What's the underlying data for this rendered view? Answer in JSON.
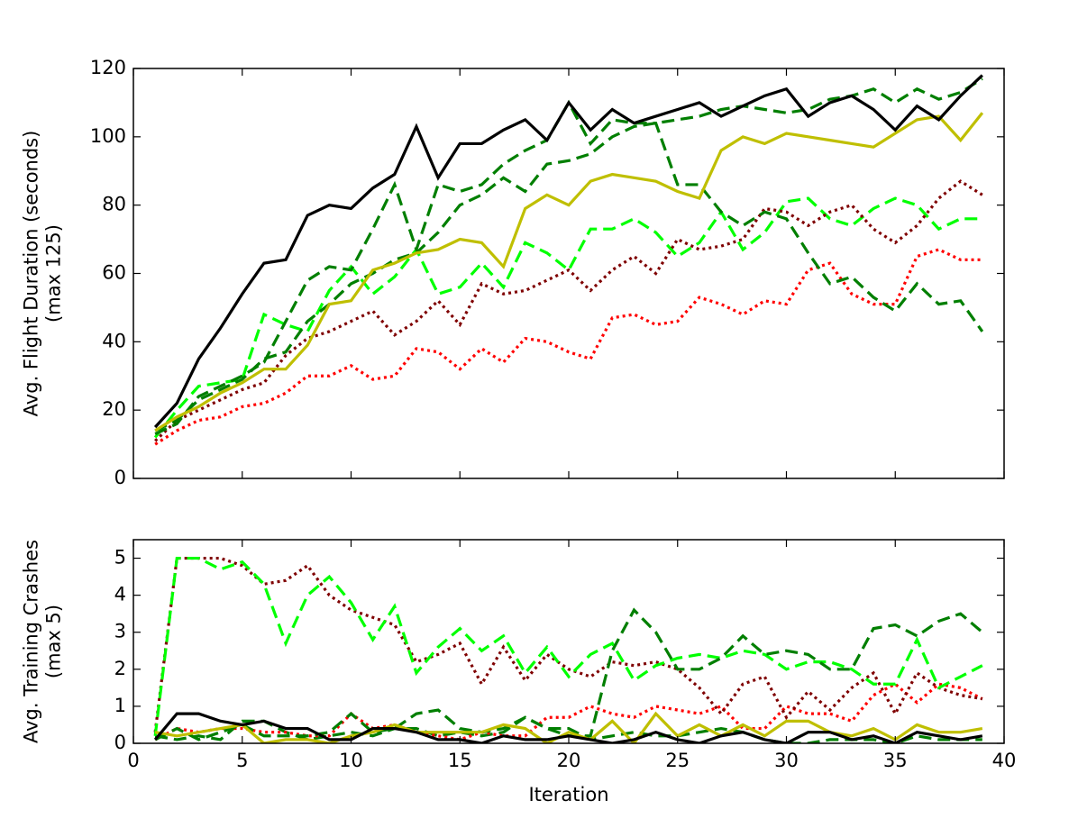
{
  "chart_data": [
    {
      "type": "line",
      "ylabel": [
        "Avg. Flight Duration (seconds)",
        "(max 125)"
      ],
      "x": [
        1,
        2,
        3,
        4,
        5,
        6,
        7,
        8,
        9,
        10,
        11,
        12,
        13,
        14,
        15,
        16,
        17,
        18,
        19,
        20,
        21,
        22,
        23,
        24,
        25,
        26,
        27,
        28,
        29,
        30,
        31,
        32,
        33,
        34,
        35,
        36,
        37,
        38,
        39
      ],
      "xlim": [
        0,
        40
      ],
      "xticks": [
        0,
        5,
        10,
        15,
        20,
        25,
        30,
        35,
        40
      ],
      "xticklabels": false,
      "ylim": [
        0,
        120
      ],
      "yticks": [
        0,
        20,
        40,
        60,
        80,
        100,
        120
      ],
      "series": [
        {
          "color": "#00ff00",
          "style": "dashed",
          "values": [
            12,
            20,
            27,
            28,
            29,
            48,
            45,
            43,
            55,
            62,
            54,
            59,
            67,
            54,
            56,
            63,
            56,
            69,
            66,
            61,
            73,
            73,
            76,
            72,
            65,
            69,
            78,
            67,
            72,
            81,
            82,
            76,
            74,
            79,
            82,
            80,
            73,
            76,
            76
          ]
        },
        {
          "color": "#7f0000",
          "style": "dotted",
          "values": [
            11,
            17,
            20,
            23,
            26,
            28,
            36,
            41,
            43,
            46,
            49,
            42,
            46,
            52,
            45,
            57,
            54,
            55,
            58,
            61,
            55,
            61,
            65,
            60,
            70,
            67,
            68,
            70,
            79,
            78,
            74,
            78,
            80,
            73,
            69,
            74,
            82,
            87,
            83
          ]
        },
        {
          "color": "#ff0000",
          "style": "dotted",
          "values": [
            10,
            14,
            17,
            18,
            21,
            22,
            25,
            30,
            30,
            33,
            29,
            30,
            38,
            37,
            32,
            38,
            34,
            41,
            40,
            37,
            35,
            47,
            48,
            45,
            46,
            53,
            51,
            48,
            52,
            51,
            61,
            63,
            54,
            51,
            51,
            65,
            67,
            64,
            64
          ]
        },
        {
          "color": "#007f00",
          "style": "dashed",
          "values": [
            13,
            16,
            24,
            27,
            30,
            34,
            46,
            58,
            62,
            61,
            73,
            86,
            67,
            86,
            84,
            86,
            92,
            96,
            99,
            110,
            98,
            105,
            104,
            104,
            86,
            86,
            78,
            74,
            78,
            76,
            66,
            57,
            59,
            53,
            49,
            57,
            51,
            52,
            43
          ]
        },
        {
          "color": "#007f00",
          "style": "dashed",
          "values": [
            14,
            17,
            23,
            26,
            29,
            35,
            37,
            46,
            51,
            57,
            60,
            64,
            66,
            72,
            80,
            83,
            88,
            84,
            92,
            93,
            95,
            100,
            103,
            104,
            105,
            106,
            108,
            109,
            108,
            107,
            108,
            111,
            112,
            114,
            110,
            114,
            111,
            113,
            117
          ]
        },
        {
          "color": "#bfbf00",
          "style": "solid",
          "values": [
            14,
            18,
            21,
            25,
            28,
            32,
            32,
            39,
            51,
            52,
            61,
            63,
            66,
            67,
            70,
            69,
            62,
            79,
            83,
            80,
            87,
            89,
            88,
            87,
            84,
            82,
            96,
            100,
            98,
            101,
            100,
            99,
            98,
            97,
            101,
            105,
            106,
            99,
            107
          ]
        },
        {
          "color": "#000000",
          "style": "solid",
          "values": [
            15,
            22,
            35,
            44,
            54,
            63,
            64,
            77,
            80,
            79,
            85,
            89,
            103,
            88,
            98,
            98,
            102,
            105,
            99,
            110,
            102,
            108,
            104,
            106,
            108,
            110,
            106,
            109,
            112,
            114,
            106,
            110,
            112,
            108,
            102,
            109,
            105,
            112,
            118
          ]
        }
      ]
    },
    {
      "type": "line",
      "xlabel": "Iteration",
      "ylabel": [
        "Avg. Training Crashes",
        "(max 5)"
      ],
      "x": [
        1,
        2,
        3,
        4,
        5,
        6,
        7,
        8,
        9,
        10,
        11,
        12,
        13,
        14,
        15,
        16,
        17,
        18,
        19,
        20,
        21,
        22,
        23,
        24,
        25,
        26,
        27,
        28,
        29,
        30,
        31,
        32,
        33,
        34,
        35,
        36,
        37,
        38,
        39
      ],
      "xlim": [
        0,
        40
      ],
      "xticks": [
        0,
        5,
        10,
        15,
        20,
        25,
        30,
        35,
        40
      ],
      "xticklabels": true,
      "ylim": [
        0,
        5.5
      ],
      "yticks": [
        0,
        1,
        2,
        3,
        4,
        5
      ],
      "series": [
        {
          "color": "#007f00",
          "style": "dashed",
          "values": [
            0.2,
            0.1,
            0.2,
            0.1,
            0.6,
            0.6,
            0.3,
            0.1,
            0.2,
            0.3,
            0.2,
            0.4,
            0.4,
            0.2,
            0.3,
            0.2,
            0.3,
            0.7,
            0.4,
            0.4,
            0.1,
            0.2,
            0.3,
            0.2,
            0.2,
            0.3,
            0.4,
            0.3,
            0.1,
            0.0,
            0.0,
            0.1,
            0.1,
            0.1,
            0.0,
            0.2,
            0.1,
            0.1,
            0.1
          ]
        },
        {
          "color": "#ff0000",
          "style": "dotted",
          "values": [
            0.1,
            0.4,
            0.3,
            0.4,
            0.4,
            0.3,
            0.3,
            0.2,
            0.2,
            0.8,
            0.4,
            0.5,
            0.3,
            0.2,
            0.1,
            0.3,
            0.2,
            0.2,
            0.7,
            0.7,
            1.0,
            0.8,
            0.7,
            1.0,
            0.9,
            0.8,
            1.0,
            0.4,
            0.4,
            1.0,
            0.8,
            0.8,
            0.6,
            1.3,
            1.6,
            1.1,
            1.6,
            1.5,
            1.2
          ]
        },
        {
          "color": "#7f0000",
          "style": "dotted",
          "values": [
            0.3,
            5.0,
            5.0,
            5.0,
            4.8,
            4.3,
            4.4,
            4.8,
            4.0,
            3.6,
            3.4,
            3.2,
            2.2,
            2.4,
            2.7,
            1.6,
            2.6,
            1.7,
            2.4,
            2.0,
            1.8,
            2.2,
            2.1,
            2.2,
            2.0,
            1.5,
            0.8,
            1.6,
            1.8,
            0.7,
            1.4,
            0.9,
            1.5,
            1.9,
            0.8,
            1.9,
            1.5,
            1.3,
            1.2
          ]
        },
        {
          "color": "#00ff00",
          "style": "dashed",
          "values": [
            0.2,
            5.0,
            5.0,
            4.7,
            4.9,
            4.3,
            2.7,
            4.0,
            4.5,
            3.8,
            2.8,
            3.7,
            1.9,
            2.6,
            3.1,
            2.5,
            2.9,
            1.9,
            2.6,
            1.8,
            2.4,
            2.7,
            1.7,
            2.1,
            2.3,
            2.4,
            2.3,
            2.5,
            2.4,
            2.0,
            2.2,
            2.2,
            2.0,
            1.6,
            1.6,
            2.8,
            1.5,
            1.8,
            2.1
          ]
        },
        {
          "color": "#007f00",
          "style": "dashed",
          "values": [
            0.1,
            0.4,
            0.1,
            0.3,
            0.5,
            0.2,
            0.2,
            0.2,
            0.3,
            0.8,
            0.3,
            0.4,
            0.8,
            0.9,
            0.4,
            0.3,
            0.4,
            0.7,
            0.4,
            0.2,
            0.2,
            2.5,
            3.6,
            3.0,
            2.0,
            2.0,
            2.3,
            2.9,
            2.4,
            2.5,
            2.4,
            2.0,
            2.0,
            3.1,
            3.2,
            2.9,
            3.3,
            3.5,
            3.0
          ]
        },
        {
          "color": "#bfbf00",
          "style": "solid",
          "values": [
            0.3,
            0.2,
            0.3,
            0.4,
            0.5,
            0.0,
            0.1,
            0.1,
            0.0,
            0.2,
            0.3,
            0.5,
            0.3,
            0.3,
            0.3,
            0.3,
            0.5,
            0.4,
            0.0,
            0.3,
            0.1,
            0.6,
            0.0,
            0.8,
            0.2,
            0.5,
            0.2,
            0.5,
            0.2,
            0.6,
            0.6,
            0.3,
            0.2,
            0.4,
            0.1,
            0.5,
            0.3,
            0.3,
            0.4
          ]
        },
        {
          "color": "#000000",
          "style": "solid",
          "values": [
            0.1,
            0.8,
            0.8,
            0.6,
            0.5,
            0.6,
            0.4,
            0.4,
            0.1,
            0.1,
            0.4,
            0.4,
            0.3,
            0.1,
            0.1,
            0.0,
            0.2,
            0.1,
            0.1,
            0.2,
            0.1,
            0.0,
            0.1,
            0.3,
            0.1,
            0.0,
            0.2,
            0.3,
            0.1,
            0.0,
            0.3,
            0.3,
            0.1,
            0.2,
            0.0,
            0.3,
            0.2,
            0.1,
            0.2
          ]
        }
      ]
    }
  ]
}
